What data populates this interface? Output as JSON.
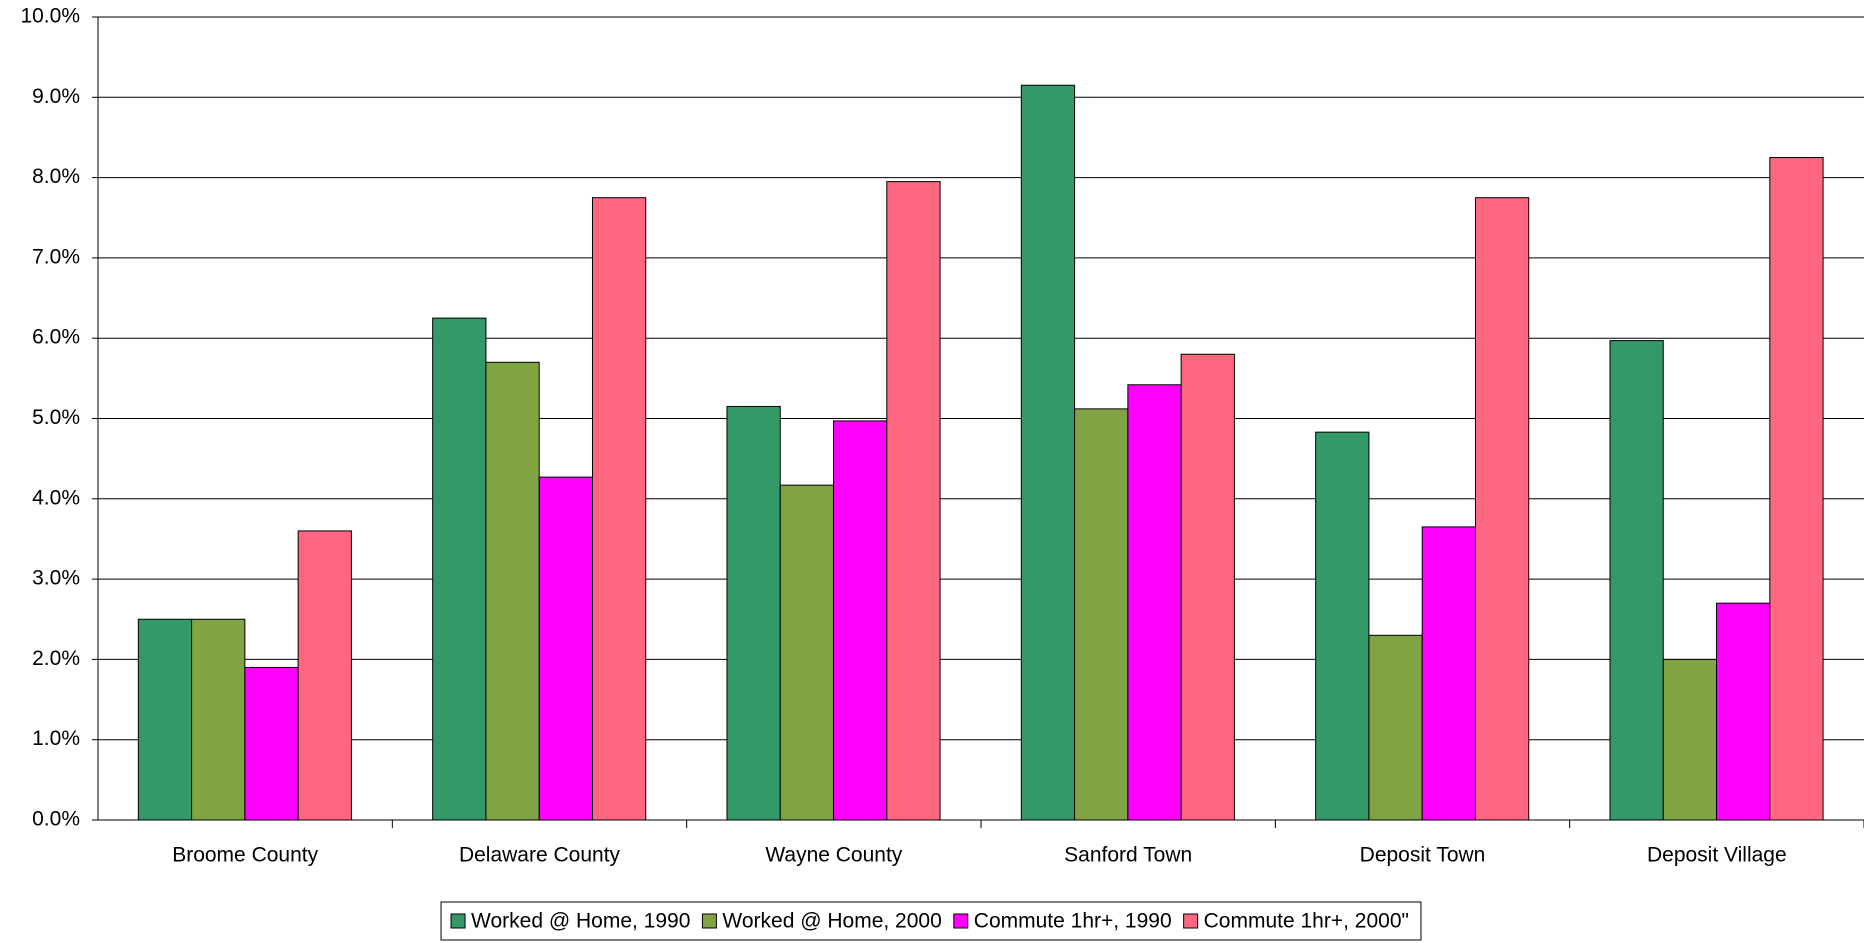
{
  "chart_data": {
    "type": "bar",
    "categories": [
      "Broome County",
      "Delaware County",
      "Wayne County",
      "Sanford Town",
      "Deposit Town",
      "Deposit Village"
    ],
    "series": [
      {
        "name": "Worked @ Home, 1990",
        "color": "#339966",
        "values": [
          2.5,
          6.25,
          5.15,
          9.15,
          4.83,
          5.97
        ]
      },
      {
        "name": "Worked @ Home, 2000",
        "color": "#80a444",
        "values": [
          2.5,
          5.7,
          4.17,
          5.12,
          2.3,
          2.0
        ]
      },
      {
        "name": "Commute 1hr+, 1990",
        "color": "#ff00ff",
        "values": [
          1.9,
          4.27,
          4.97,
          5.42,
          3.65,
          2.7
        ]
      },
      {
        "name": "Commute 1hr+, 2000\"",
        "color": "#ff6680",
        "values": [
          3.6,
          7.75,
          7.95,
          5.8,
          7.75,
          8.25
        ]
      }
    ],
    "ylim": [
      0,
      10
    ],
    "yticks": [
      {
        "value": 0,
        "label": "0.0%"
      },
      {
        "value": 1,
        "label": "1.0%"
      },
      {
        "value": 2,
        "label": "2.0%"
      },
      {
        "value": 3,
        "label": "3.0%"
      },
      {
        "value": 4,
        "label": "4.0%"
      },
      {
        "value": 5,
        "label": "5.0%"
      },
      {
        "value": 6,
        "label": "6.0%"
      },
      {
        "value": 7,
        "label": "7.0%"
      },
      {
        "value": 8,
        "label": "8.0%"
      },
      {
        "value": 9,
        "label": "9.0%"
      },
      {
        "value": 10,
        "label": "10.0%"
      }
    ],
    "grid": true,
    "legend": "bottom"
  }
}
